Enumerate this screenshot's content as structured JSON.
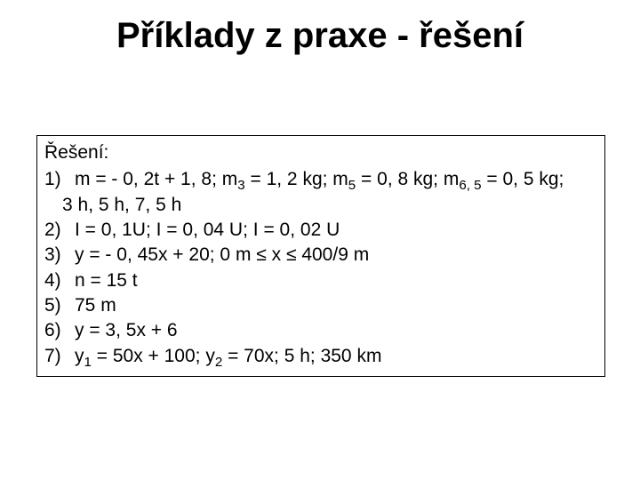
{
  "title": "Příklady z praxe - řešení",
  "box": {
    "heading": "Řešení:",
    "items": [
      {
        "num": "1)",
        "line1_a": "m = - 0, 2t + 1, 8; m",
        "line1_sub1": "3",
        "line1_b": " = 1, 2 kg; m",
        "line1_sub2": "5",
        "line1_c": " = 0, 8 kg; m",
        "line1_sub3": "6, 5",
        "line1_d": " = 0, 5 kg;",
        "line2": "3 h, 5 h, 7, 5 h"
      },
      {
        "num": "2)",
        "text": "I = 0, 1U; I = 0, 04 U; I = 0, 02 U"
      },
      {
        "num": "3)",
        "text": "y = - 0, 45x + 20; 0 m ≤ x ≤ 400/9 m"
      },
      {
        "num": "4)",
        "text": "n = 15 t"
      },
      {
        "num": "5)",
        "text": "75 m"
      },
      {
        "num": "6)",
        "text": "y = 3, 5x + 6"
      },
      {
        "num": "7)",
        "a": "y",
        "sub1": "1",
        "b": " = 50x + 100; y",
        "sub2": "2",
        "c": " = 70x; 5 h; 350 km"
      }
    ]
  },
  "colors": {
    "background": "#ffffff",
    "text": "#000000",
    "border": "#000000"
  }
}
